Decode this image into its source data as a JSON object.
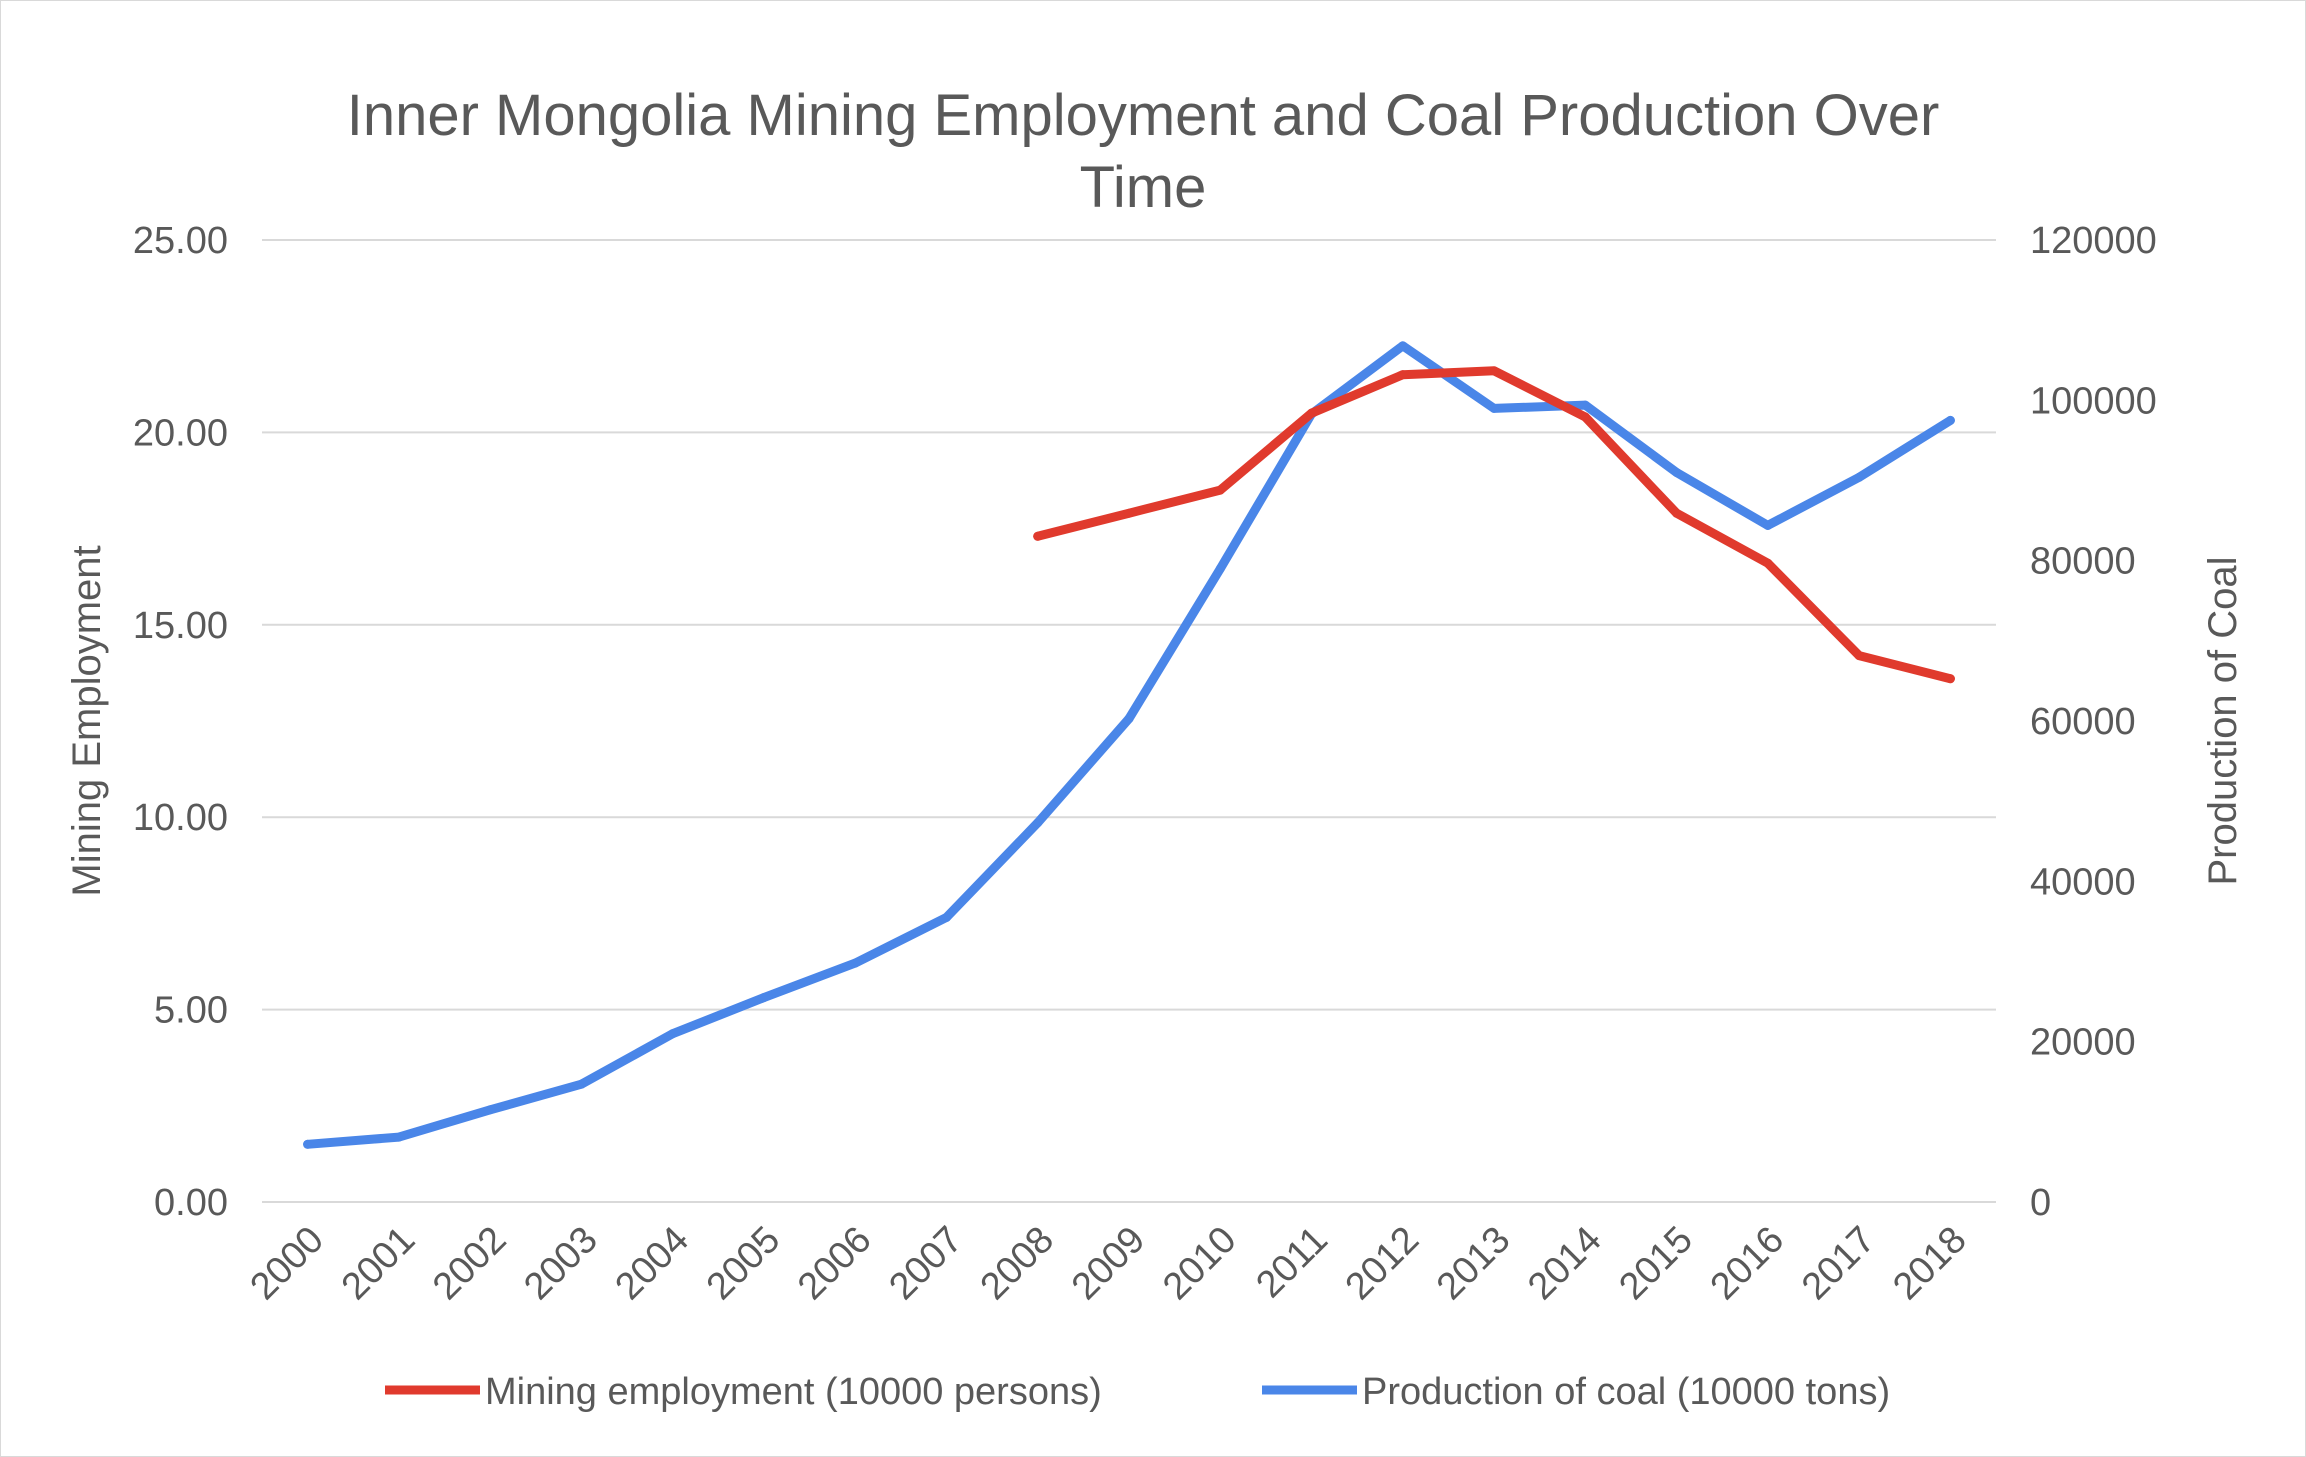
{
  "chart_data": {
    "type": "line",
    "title_lines": [
      "Inner Mongolia Mining Employment and Coal Production Over",
      "Time"
    ],
    "categories": [
      "2000",
      "2001",
      "2002",
      "2003",
      "2004",
      "2005",
      "2006",
      "2007",
      "2008",
      "2009",
      "2010",
      "2011",
      "2012",
      "2013",
      "2014",
      "2015",
      "2016",
      "2017",
      "2018"
    ],
    "y_left": {
      "label": "Mining Employment",
      "ylim": [
        0,
        25
      ],
      "ticks": [
        "0.00",
        "5.00",
        "10.00",
        "15.00",
        "20.00",
        "25.00"
      ],
      "tick_values": [
        0,
        5,
        10,
        15,
        20,
        25
      ]
    },
    "y_right": {
      "label": "Production of Coal",
      "ylim": [
        0,
        120000
      ],
      "ticks": [
        "0",
        "20000",
        "40000",
        "60000",
        "80000",
        "100000",
        "120000"
      ],
      "tick_values": [
        0,
        20000,
        40000,
        60000,
        80000,
        100000,
        120000
      ]
    },
    "series": [
      {
        "name": "Mining employment (10000 persons)",
        "axis": "left",
        "color": "#e03a2d",
        "values": [
          null,
          null,
          null,
          null,
          null,
          null,
          null,
          null,
          17.3,
          17.9,
          18.5,
          20.5,
          21.5,
          21.6,
          20.4,
          17.9,
          16.6,
          14.2,
          13.6
        ]
      },
      {
        "name": "Production of coal (10000 tons)",
        "axis": "right",
        "color": "#4a86e8",
        "values": [
          7200,
          8100,
          11500,
          14700,
          21000,
          25500,
          29800,
          35500,
          47300,
          60300,
          79000,
          98300,
          106800,
          99000,
          99400,
          91000,
          84400,
          90400,
          97500
        ]
      }
    ],
    "grid": true,
    "legend_position": "bottom"
  }
}
